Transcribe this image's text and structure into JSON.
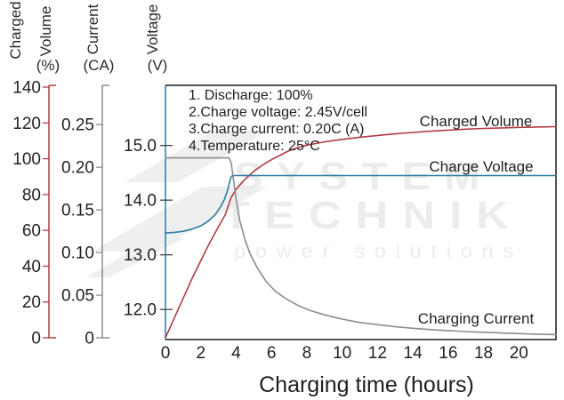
{
  "axis_headers": {
    "volume_word1": "Charged",
    "volume_word2": "Volume",
    "volume_unit": "(%)",
    "current_word": "Current",
    "current_unit": "(CA)",
    "voltage_word": "Voltage",
    "voltage_unit": "(V)"
  },
  "watermark": {
    "line1": "SYSTEM",
    "line2": "TECHNIK",
    "line3": "power solutions"
  },
  "chart_data": {
    "type": "line",
    "title": "",
    "xlabel": "Charging time (hours)",
    "x_axis": {
      "min": 0,
      "max": 22.1,
      "tick_values": [
        0,
        2,
        4,
        6,
        8,
        10,
        12,
        14,
        16,
        18,
        20
      ],
      "tick_labels": [
        "0",
        "2",
        "4",
        "6",
        "8",
        "10",
        "12",
        "14",
        "16",
        "18",
        "20"
      ]
    },
    "y_axes": [
      {
        "id": "volume",
        "title": "Charged Volume (%)",
        "color": "#b23b42",
        "min": -1,
        "max": 141,
        "tick_values": [
          0,
          20,
          40,
          60,
          80,
          100,
          120,
          140
        ],
        "tick_labels": [
          "0",
          "20",
          "40",
          "60",
          "80",
          "100",
          "120",
          "140"
        ]
      },
      {
        "id": "current",
        "title": "Current (CA)",
        "color": "#8c8c8c",
        "min": -0.002,
        "max": 0.296,
        "tick_values": [
          0,
          0.05,
          0.1,
          0.15,
          0.2,
          0.25
        ],
        "tick_labels": [
          "0",
          "0.05",
          "0.10",
          "0.15",
          "0.20",
          "0.25"
        ]
      },
      {
        "id": "voltage",
        "title": "Voltage (V)",
        "color": "#2b7da3",
        "min": 11.45,
        "max": 16.1,
        "tick_values": [
          12,
          13,
          14,
          15
        ],
        "tick_labels": [
          "12.0",
          "13.0",
          "14.0",
          "15.0"
        ]
      }
    ],
    "annotations": [
      "1. Discharge: 100%",
      "2.Charge voltage: 2.45V/cell",
      "3.Charge current: 0.20C (A)",
      "4.Temperature: 25°C"
    ],
    "series": [
      {
        "name": "Charged Volume",
        "axis": "volume",
        "color": "#b23b42",
        "points": [
          [
            0,
            0
          ],
          [
            0.5,
            11
          ],
          [
            1,
            22
          ],
          [
            1.5,
            33
          ],
          [
            2,
            43
          ],
          [
            2.5,
            53
          ],
          [
            3,
            62
          ],
          [
            3.4,
            69
          ],
          [
            3.7,
            78
          ],
          [
            4,
            83
          ],
          [
            4.5,
            88.5
          ],
          [
            5,
            93
          ],
          [
            5.5,
            96.5
          ],
          [
            6,
            99.5
          ],
          [
            6.5,
            102
          ],
          [
            7,
            104.5
          ],
          [
            7.5,
            106.3
          ],
          [
            8,
            107.6
          ],
          [
            9,
            109.4
          ],
          [
            10,
            110.8
          ],
          [
            11,
            112
          ],
          [
            12,
            113
          ],
          [
            13,
            113.9
          ],
          [
            14,
            114.7
          ],
          [
            15,
            115.4
          ],
          [
            16,
            116
          ],
          [
            17,
            116.5
          ],
          [
            18,
            116.9
          ],
          [
            19,
            117.2
          ],
          [
            20,
            117.5
          ],
          [
            21,
            117.7
          ],
          [
            22.1,
            117.9
          ]
        ]
      },
      {
        "name": "Charge Voltage",
        "axis": "voltage",
        "color": "#2b7da3",
        "points": [
          [
            0,
            13.4
          ],
          [
            0.5,
            13.41
          ],
          [
            1,
            13.43
          ],
          [
            1.5,
            13.47
          ],
          [
            2,
            13.53
          ],
          [
            2.4,
            13.61
          ],
          [
            2.8,
            13.73
          ],
          [
            3.1,
            13.87
          ],
          [
            3.35,
            14.02
          ],
          [
            3.55,
            14.22
          ],
          [
            3.68,
            14.4
          ],
          [
            3.78,
            14.45
          ],
          [
            22.1,
            14.45
          ]
        ]
      },
      {
        "name": "Charging Current",
        "axis": "current",
        "color": "#8c8c8c",
        "points": [
          [
            0,
            0.211
          ],
          [
            3.6,
            0.211
          ],
          [
            3.72,
            0.205
          ],
          [
            3.85,
            0.185
          ],
          [
            4,
            0.162
          ],
          [
            4.2,
            0.138
          ],
          [
            4.5,
            0.115
          ],
          [
            4.8,
            0.098
          ],
          [
            5.2,
            0.082
          ],
          [
            5.7,
            0.066
          ],
          [
            6.2,
            0.055
          ],
          [
            6.8,
            0.046
          ],
          [
            7.5,
            0.038
          ],
          [
            8.2,
            0.032
          ],
          [
            9,
            0.027
          ],
          [
            10,
            0.022
          ],
          [
            11,
            0.018
          ],
          [
            12,
            0.0155
          ],
          [
            13,
            0.013
          ],
          [
            14,
            0.0112
          ],
          [
            15,
            0.0097
          ],
          [
            16,
            0.0085
          ],
          [
            17,
            0.0074
          ],
          [
            18,
            0.0065
          ],
          [
            19,
            0.0057
          ],
          [
            20,
            0.005
          ],
          [
            21,
            0.0044
          ],
          [
            22.1,
            0.0038
          ]
        ]
      }
    ]
  }
}
